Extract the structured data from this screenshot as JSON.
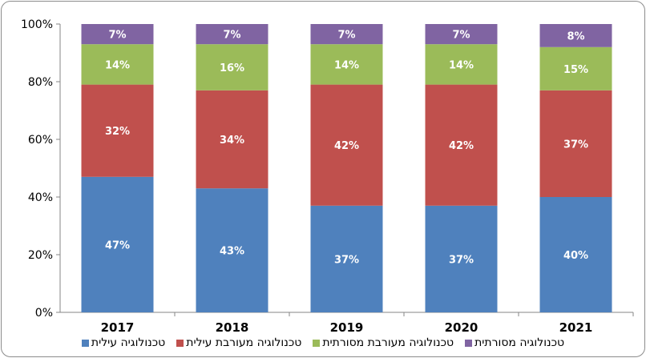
{
  "chart_data": {
    "type": "bar",
    "stacked": true,
    "categories": [
      "2017",
      "2018",
      "2019",
      "2020",
      "2021"
    ],
    "series": [
      {
        "name": "טכנולוגיה עילית",
        "color": "#4f81bd",
        "values": [
          47,
          43,
          37,
          37,
          40
        ]
      },
      {
        "name": "טכנולוגיה מעורבת עילית",
        "color": "#c0504d",
        "values": [
          32,
          34,
          42,
          42,
          37
        ]
      },
      {
        "name": "טכנולוגיה מעורבת מסורתית",
        "color": "#9bbb59",
        "values": [
          14,
          16,
          14,
          14,
          15
        ]
      },
      {
        "name": "טכנולוגיה מסורתית",
        "color": "#8064a2",
        "values": [
          7,
          7,
          7,
          7,
          8
        ]
      }
    ],
    "yticks": [
      "0%",
      "20%",
      "40%",
      "60%",
      "80%",
      "100%"
    ],
    "ylim": [
      0,
      100
    ],
    "grid": false,
    "legend": "bottom",
    "data_label_suffix": "%"
  }
}
